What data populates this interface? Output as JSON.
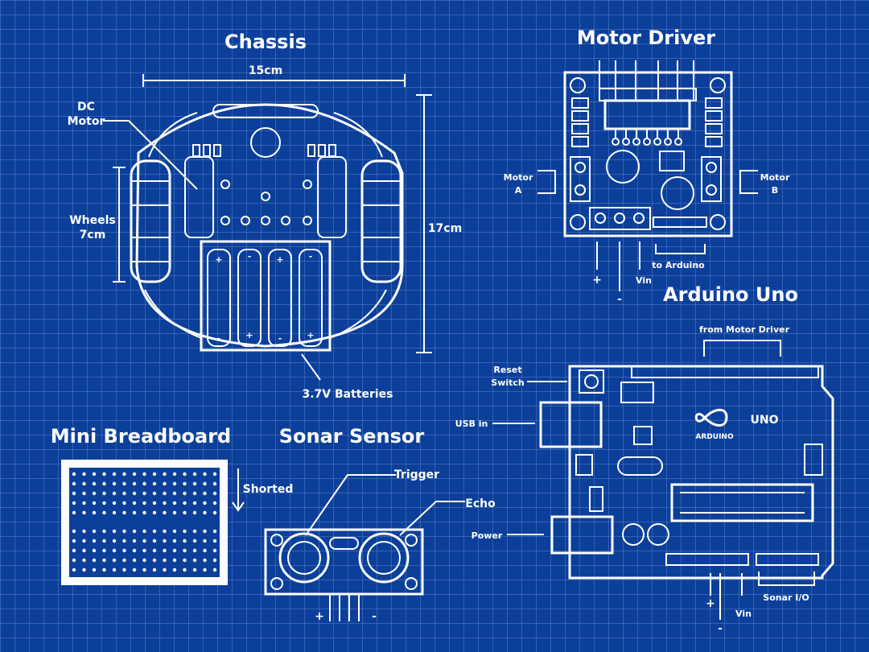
{
  "titles": {
    "chassis": "Chassis",
    "motor_driver": "Motor Driver",
    "arduino": "Arduino Uno",
    "breadboard": "Mini Breadboard",
    "sonar": "Sonar Sensor"
  },
  "chassis": {
    "width": "15cm",
    "height": "17cm",
    "dc_motor_1": "DC",
    "dc_motor_2": "Motor",
    "wheels_1": "Wheels",
    "wheels_2": "7cm",
    "batteries": "3.7V Batteries"
  },
  "motor_driver": {
    "motor_a_1": "Motor",
    "motor_a_2": "A",
    "motor_b_1": "Motor",
    "motor_b_2": "B",
    "plus": "+",
    "minus": "-",
    "vin": "Vin",
    "to_arduino": "to Arduino"
  },
  "arduino": {
    "from_motor_driver": "from Motor Driver",
    "reset_1": "Reset",
    "reset_2": "Switch",
    "usb_in": "USB in",
    "power": "Power",
    "uno": "UNO",
    "brand": "ARDUINO",
    "plus": "+",
    "minus": "-",
    "vin": "Vin",
    "sonar_io": "Sonar I/O"
  },
  "breadboard": {
    "shorted": "Shorted"
  },
  "sonar": {
    "trigger": "Trigger",
    "echo": "Echo",
    "plus": "+",
    "minus": "-"
  }
}
